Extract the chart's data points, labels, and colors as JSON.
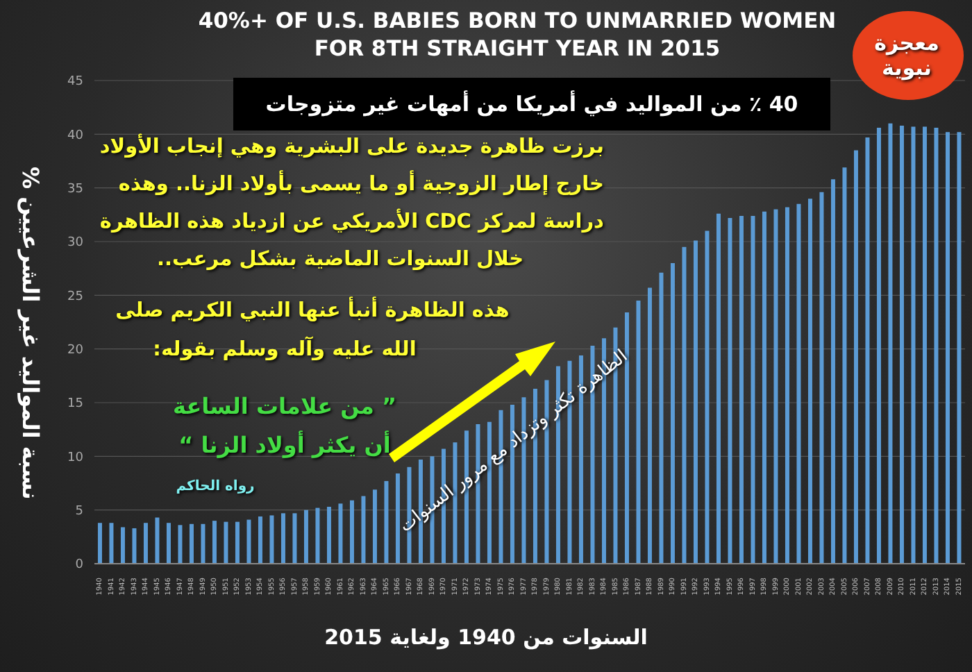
{
  "chart_data": {
    "type": "bar",
    "title": "40%+ OF U.S. BABIES BORN TO UNMARRIED WOMEN FOR 8TH STRAIGHT YEAR IN 2015",
    "subtitle": "40 ٪ من المواليد في أمريكا من أمهات غير متزوجات",
    "xlabel": "السنوات من 1940 ولغاية 2015",
    "ylabel": "نسبة المواليد غير الشرعيين %",
    "annotations": [
      "معجزة نبوية",
      "برزت ظاهرة جديدة على البشرية وهي إنجاب الأولاد",
      "خارج إطار الزوجية أو ما يسمى بأولاد الزنا.. وهذه",
      "دراسة لمركز CDC الأمريكي عن ازدياد هذه الظاهرة",
      "خلال السنوات الماضية بشكل مرعب..",
      "هذه الظاهرة أنبأ عنها النبي الكريم صلى",
      "الله عليه وآله وسلم بقوله:",
      "” من علامات الساعة",
      "أن يكثر أولاد الزنا “",
      "رواه الحاكم",
      "الظاهرة تكثر وتزداد مع مرور السنوات"
    ],
    "categories": [
      "1940",
      "1941",
      "1942",
      "1943",
      "1944",
      "1945",
      "1946",
      "1947",
      "1948",
      "1949",
      "1950",
      "1951",
      "1952",
      "1953",
      "1954",
      "1955",
      "1956",
      "1957",
      "1958",
      "1959",
      "1960",
      "1961",
      "1962",
      "1963",
      "1964",
      "1965",
      "1966",
      "1967",
      "1968",
      "1969",
      "1970",
      "1971",
      "1972",
      "1973",
      "1974",
      "1975",
      "1976",
      "1977",
      "1978",
      "1979",
      "1980",
      "1981",
      "1982",
      "1983",
      "1984",
      "1985",
      "1986",
      "1987",
      "1988",
      "1989",
      "1990",
      "1991",
      "1992",
      "1993",
      "1994",
      "1995",
      "1996",
      "1997",
      "1998",
      "1999",
      "2000",
      "2001",
      "2002",
      "2003",
      "2004",
      "2005",
      "2006",
      "2007",
      "2008",
      "2009",
      "2010",
      "2011",
      "2012",
      "2013",
      "2014",
      "2015"
    ],
    "values": [
      3.8,
      3.8,
      3.4,
      3.3,
      3.8,
      4.3,
      3.8,
      3.6,
      3.7,
      3.7,
      4.0,
      3.9,
      3.9,
      4.1,
      4.4,
      4.5,
      4.7,
      4.7,
      5.0,
      5.2,
      5.3,
      5.6,
      5.9,
      6.3,
      6.9,
      7.7,
      8.4,
      9.0,
      9.7,
      10.0,
      10.7,
      11.3,
      12.4,
      13.0,
      13.2,
      14.3,
      14.8,
      15.5,
      16.3,
      17.1,
      18.4,
      18.9,
      19.4,
      20.3,
      21.0,
      22.0,
      23.4,
      24.5,
      25.7,
      27.1,
      28.0,
      29.5,
      30.1,
      31.0,
      32.6,
      32.2,
      32.4,
      32.4,
      32.8,
      33.0,
      33.2,
      33.5,
      34.0,
      34.6,
      35.8,
      36.9,
      38.5,
      39.7,
      40.6,
      41.0,
      40.8,
      40.7,
      40.7,
      40.6,
      40.2,
      40.2
    ],
    "color": "#5b9bd5",
    "ylim": [
      0,
      45
    ],
    "yticks": [
      0,
      5,
      10,
      15,
      20,
      25,
      30,
      35,
      40,
      45
    ],
    "grid": "y"
  }
}
